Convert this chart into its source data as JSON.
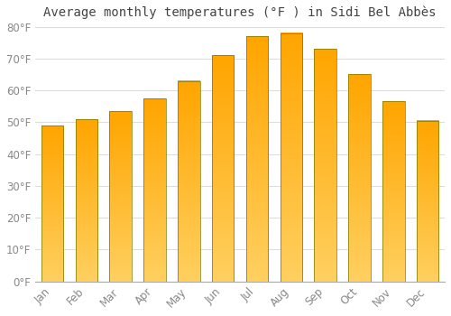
{
  "title": "Average monthly temperatures (°F ) in Sidi Bel Abbès",
  "months": [
    "Jan",
    "Feb",
    "Mar",
    "Apr",
    "May",
    "Jun",
    "Jul",
    "Aug",
    "Sep",
    "Oct",
    "Nov",
    "Dec"
  ],
  "values": [
    49,
    51,
    53.5,
    57.5,
    63,
    71,
    77,
    78,
    73,
    65,
    56.5,
    50.5
  ],
  "bar_color_top": "#FFA500",
  "bar_color_mid": "#FFB830",
  "bar_color_bottom": "#FFD060",
  "bar_edge_color": "#888800",
  "ylim": [
    0,
    80
  ],
  "ytick_step": 10,
  "background_color": "#FFFFFF",
  "grid_color": "#DDDDDD",
  "title_fontsize": 10,
  "tick_fontsize": 8.5,
  "tick_color": "#888888",
  "title_color": "#444444"
}
